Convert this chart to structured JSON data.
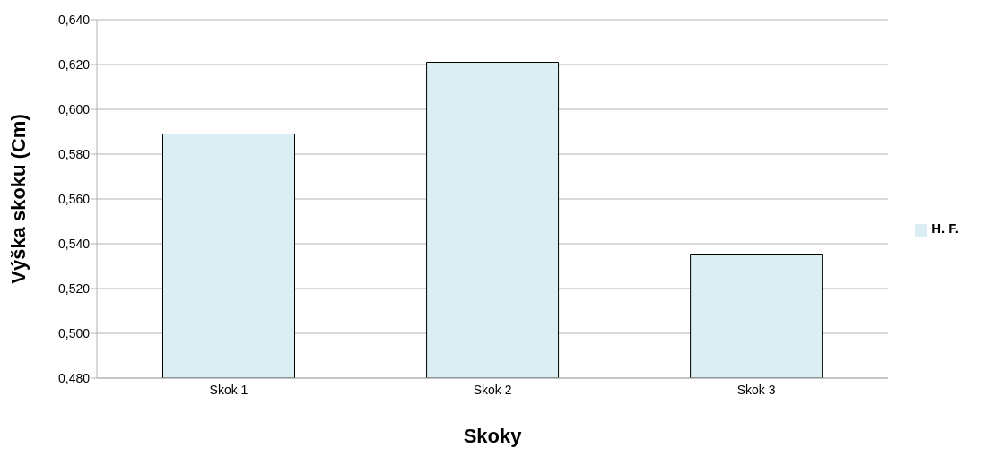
{
  "chart_data": {
    "type": "bar",
    "xlabel": "Skoky",
    "ylabel": "Výška skoku (Cm)",
    "categories": [
      "Skok 1",
      "Skok 2",
      "Skok 3"
    ],
    "series": [
      {
        "name": "H. F.",
        "color": "#dbeef4",
        "values": [
          0.589,
          0.621,
          0.535
        ]
      }
    ],
    "ylim": [
      0.48,
      0.64
    ],
    "yticks": [
      {
        "value": 0.48,
        "label": "0,480"
      },
      {
        "value": 0.5,
        "label": "0,500"
      },
      {
        "value": 0.52,
        "label": "0,520"
      },
      {
        "value": 0.54,
        "label": "0,540"
      },
      {
        "value": 0.56,
        "label": "0,560"
      },
      {
        "value": 0.58,
        "label": "0,580"
      },
      {
        "value": 0.6,
        "label": "0,600"
      },
      {
        "value": 0.62,
        "label": "0,620"
      },
      {
        "value": 0.64,
        "label": "0,640"
      }
    ],
    "grid": "y",
    "legend": "right"
  }
}
